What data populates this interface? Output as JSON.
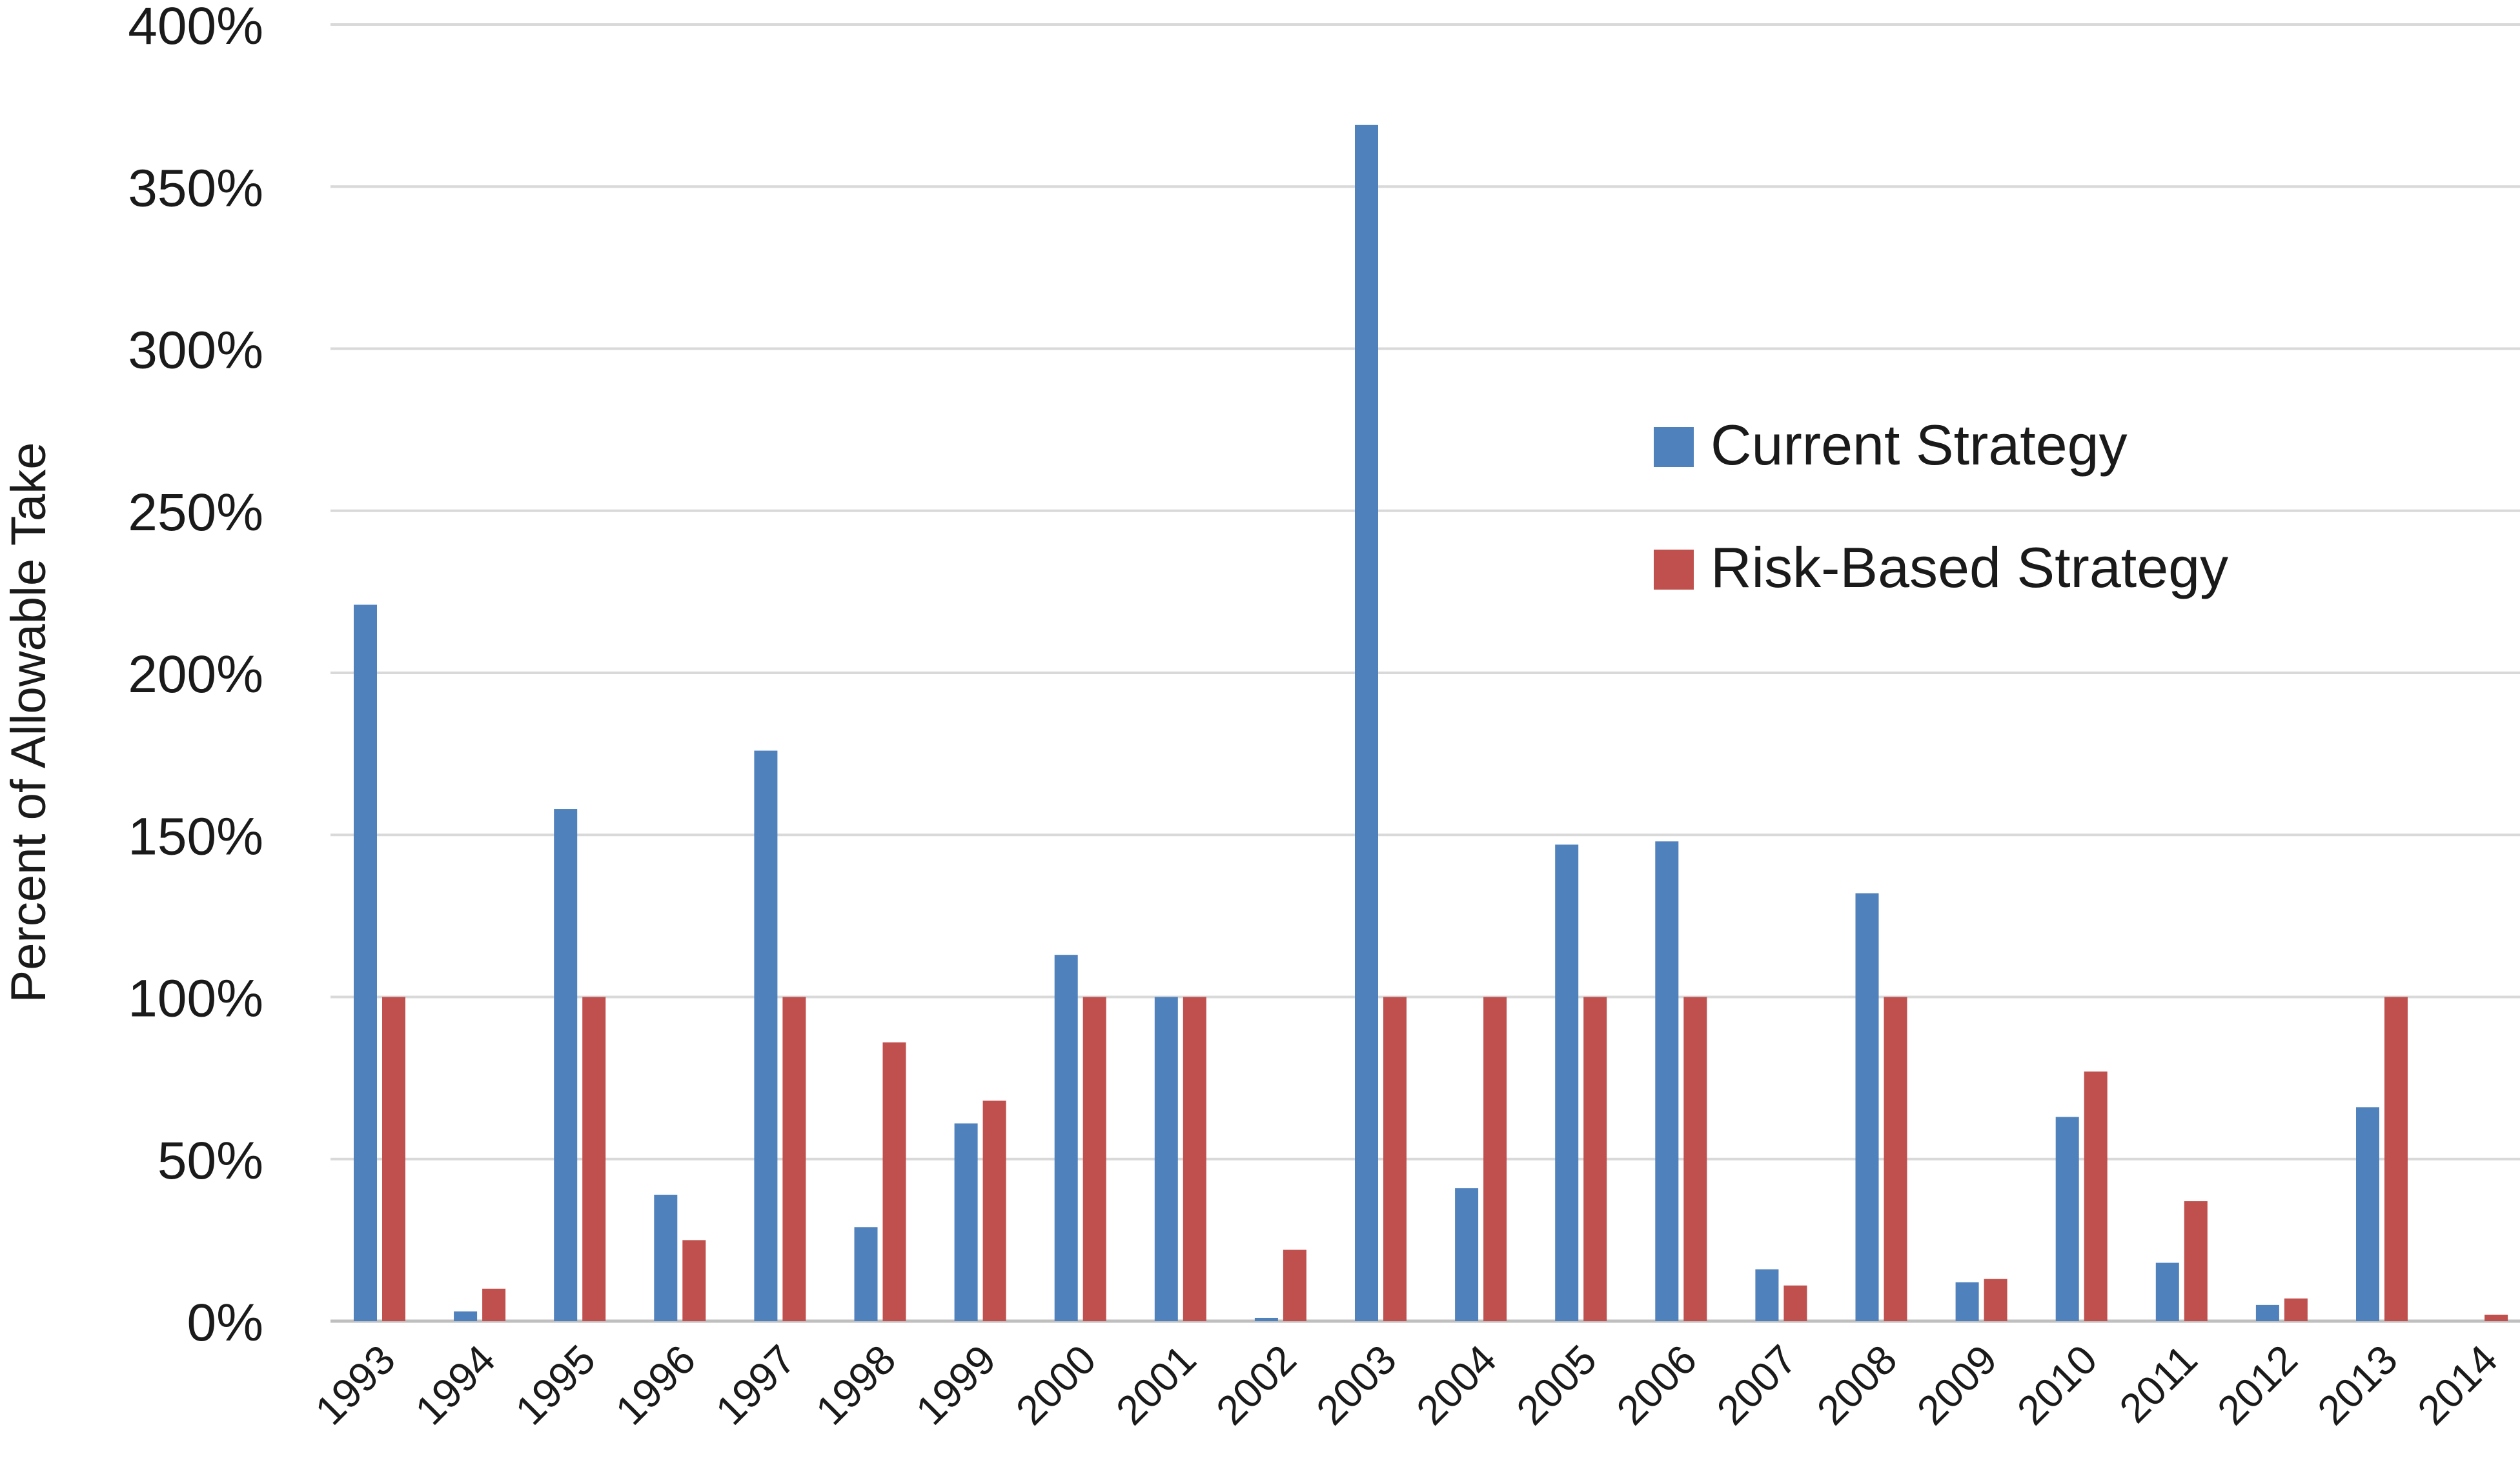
{
  "chart_data": {
    "type": "bar",
    "title": "",
    "xlabel": "",
    "ylabel": "Percent of Allowable Take",
    "ylim": [
      0,
      400
    ],
    "yticks": [
      0,
      50,
      100,
      150,
      200,
      250,
      300,
      350,
      400
    ],
    "ytick_labels": [
      "0%",
      "50%",
      "100%",
      "150%",
      "200%",
      "250%",
      "300%",
      "350%",
      "400%"
    ],
    "grid": true,
    "legend_position": "center-right",
    "categories": [
      "1993",
      "1994",
      "1995",
      "1996",
      "1997",
      "1998",
      "1999",
      "2000",
      "2001",
      "2002",
      "2003",
      "2004",
      "2005",
      "2006",
      "2007",
      "2008",
      "2009",
      "2010",
      "2011",
      "2012",
      "2013",
      "2014"
    ],
    "series": [
      {
        "name": "Current Strategy",
        "color": "#4F81BD",
        "values": [
          221,
          3,
          158,
          39,
          176,
          29,
          61,
          113,
          100,
          1,
          369,
          41,
          147,
          148,
          16,
          132,
          12,
          63,
          18,
          5,
          66,
          0
        ]
      },
      {
        "name": "Risk-Based Strategy",
        "color": "#C0504D",
        "values": [
          100,
          10,
          100,
          25,
          100,
          86,
          68,
          100,
          100,
          22,
          100,
          100,
          100,
          100,
          11,
          100,
          13,
          77,
          37,
          7,
          100,
          2
        ]
      }
    ]
  }
}
